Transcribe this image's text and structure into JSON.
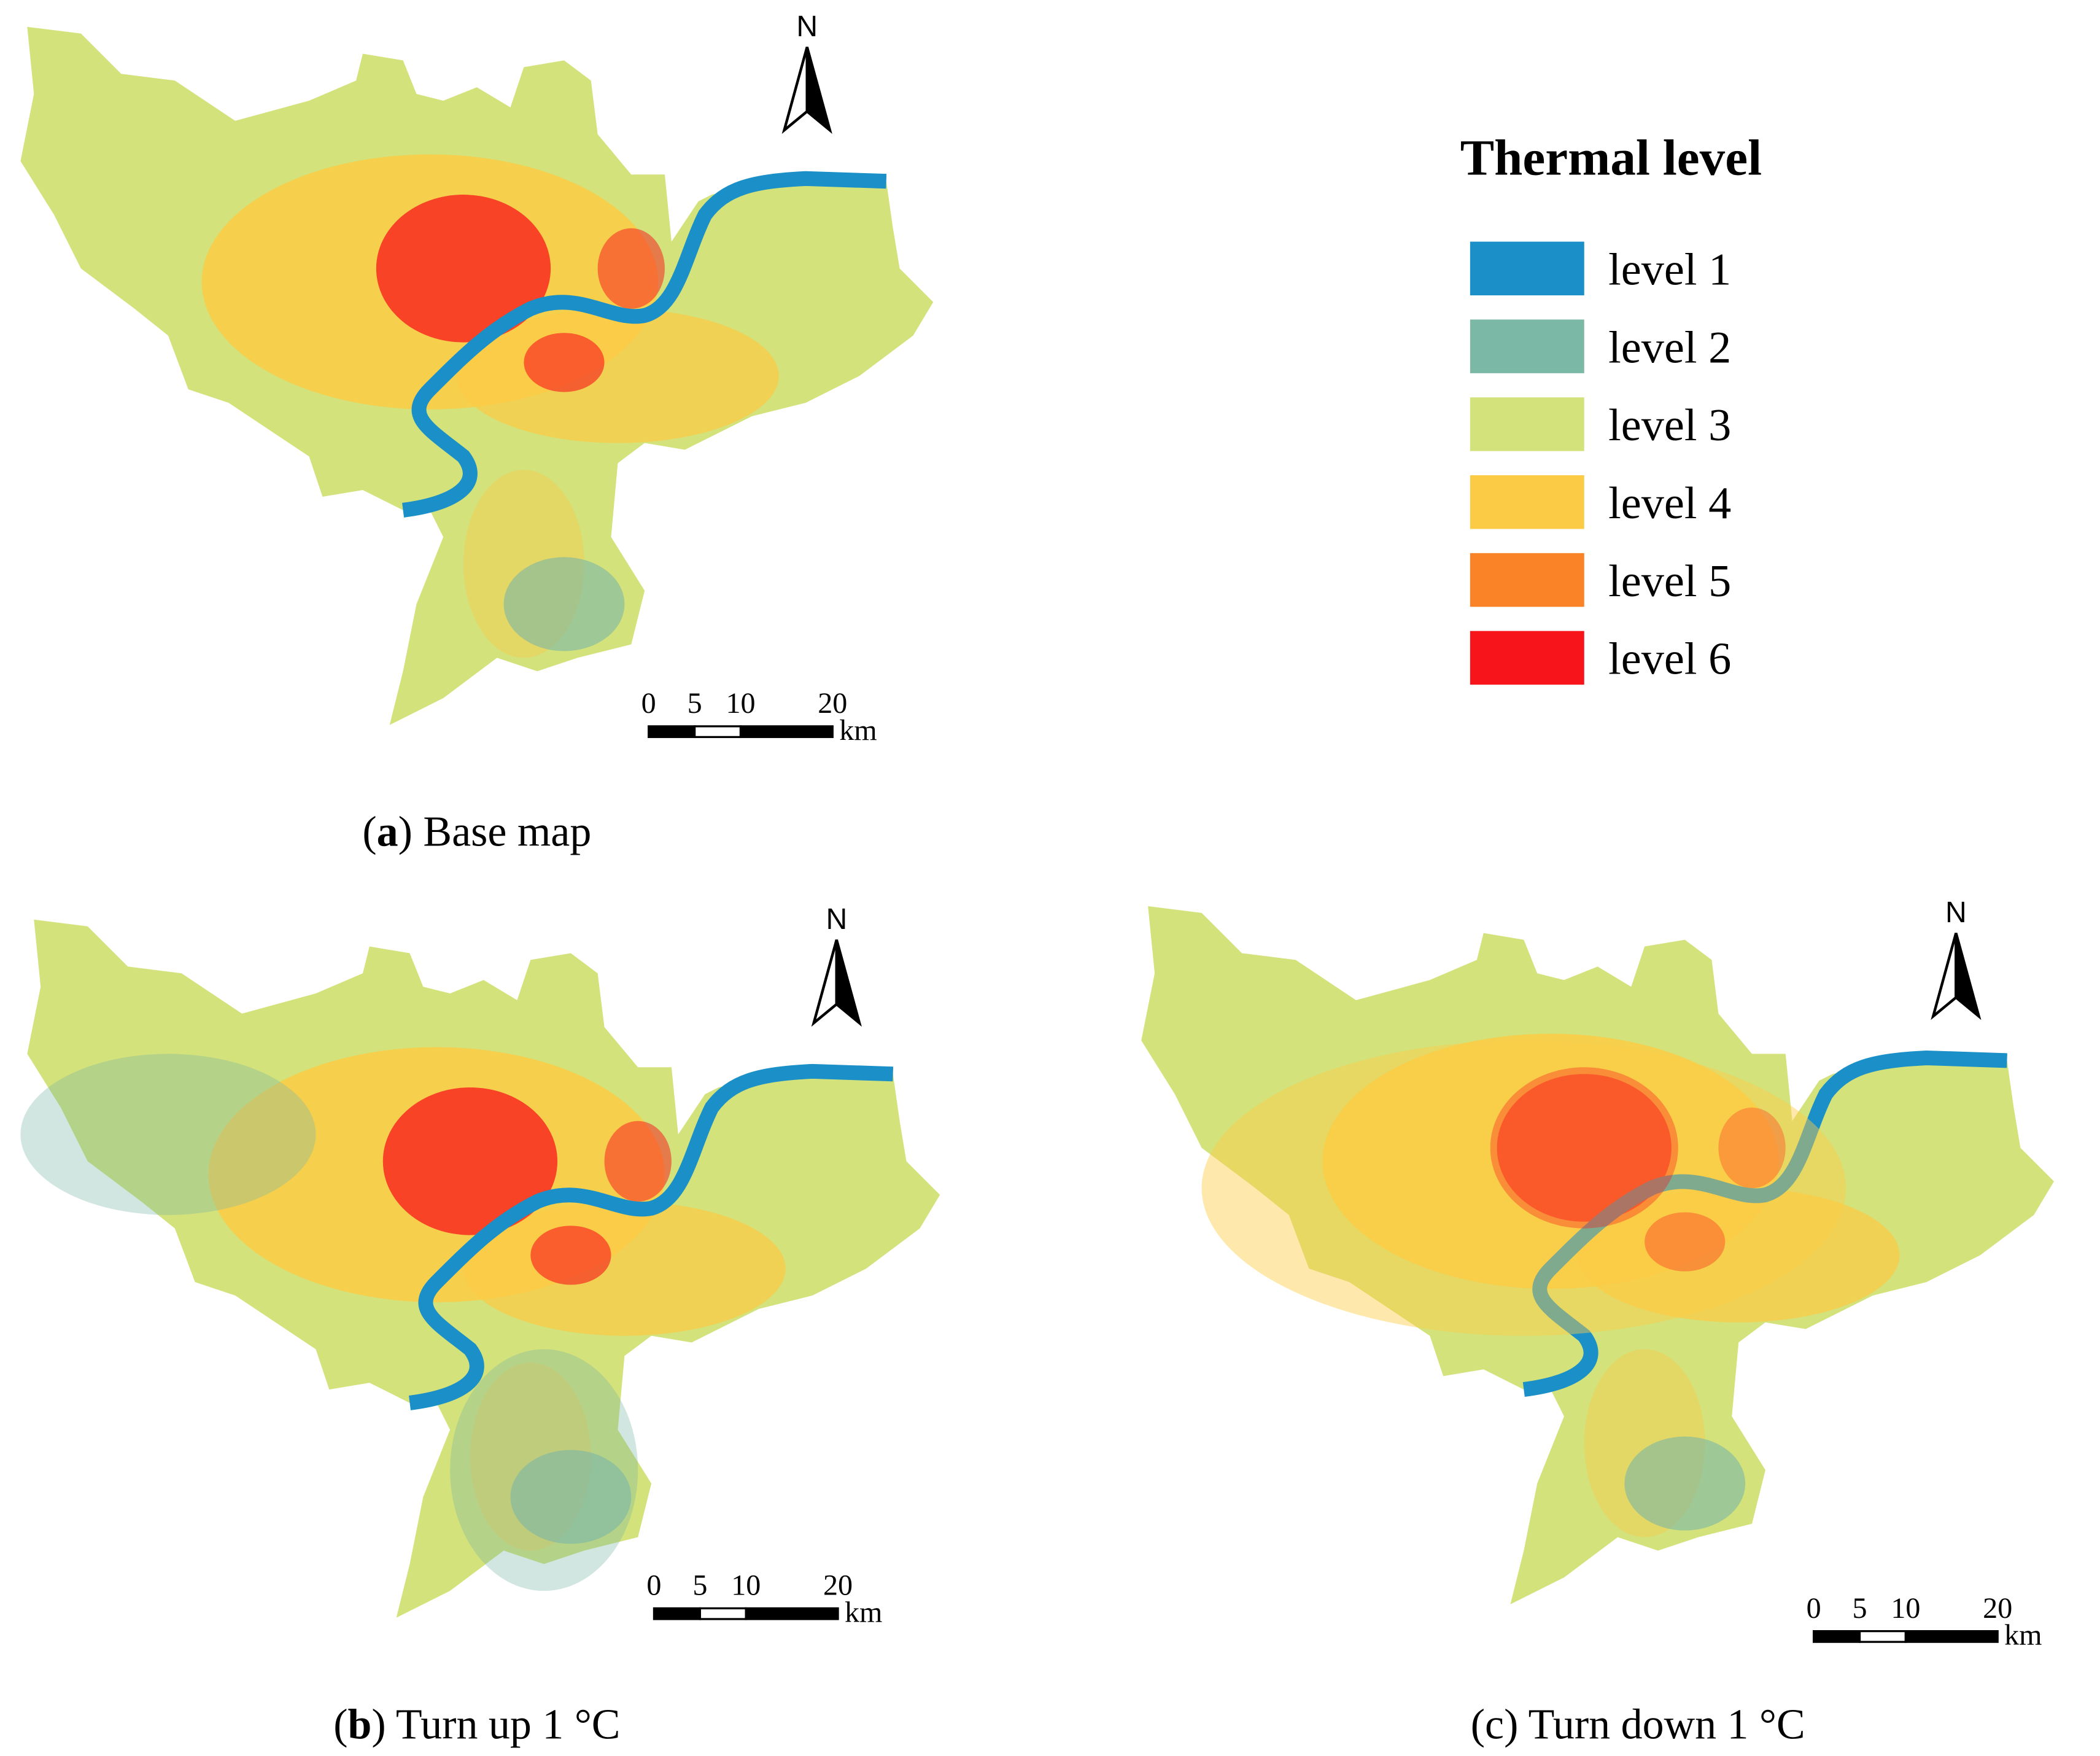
{
  "legend": {
    "title": "Thermal level",
    "items": [
      {
        "label": "level 1",
        "color": "#1a8fc8"
      },
      {
        "label": "level 2",
        "color": "#7bb8a6"
      },
      {
        "label": "level 3",
        "color": "#d3e27a"
      },
      {
        "label": "level 4",
        "color": "#fccb45"
      },
      {
        "label": "level 5",
        "color": "#fb8327"
      },
      {
        "label": "level 6",
        "color": "#f8141b"
      }
    ]
  },
  "maps": [
    {
      "caption": {
        "prefix": "(",
        "letter": "a",
        "suffix": ") Base map",
        "letter_bold": true
      },
      "north": "N",
      "scale": {
        "ticks": [
          0,
          5,
          10,
          20
        ],
        "unit": "km"
      }
    },
    {
      "caption": {
        "prefix": "(",
        "letter": "b",
        "suffix": ") Turn up 1 °C",
        "letter_bold": true
      },
      "north": "N",
      "scale": {
        "ticks": [
          0,
          5,
          10,
          20
        ],
        "unit": "km"
      }
    },
    {
      "caption": {
        "prefix": "(",
        "letter": "c",
        "suffix": ") Turn down 1 °C",
        "letter_bold": false
      },
      "north": "N",
      "scale": {
        "ticks": [
          0,
          5,
          10,
          20
        ],
        "unit": "km"
      }
    }
  ]
}
